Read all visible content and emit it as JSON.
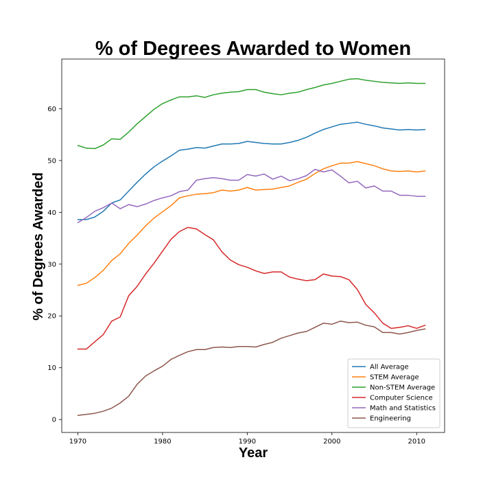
{
  "chart_data": {
    "type": "line",
    "title": "% of Degrees Awarded to Women",
    "xlabel": "Year",
    "ylabel": "% of Degrees Awarded",
    "xlim": [
      1968.1,
      2013.3
    ],
    "ylim": [
      -2.5,
      69.6
    ],
    "xticks": [
      1970,
      1980,
      1990,
      2000,
      2010
    ],
    "yticks": [
      0,
      10,
      20,
      30,
      40,
      50,
      60
    ],
    "grid": false,
    "legend_position": "lower-right",
    "x": [
      1970,
      1971,
      1972,
      1973,
      1974,
      1975,
      1976,
      1977,
      1978,
      1979,
      1980,
      1981,
      1982,
      1983,
      1984,
      1985,
      1986,
      1987,
      1988,
      1989,
      1990,
      1991,
      1992,
      1993,
      1994,
      1995,
      1996,
      1997,
      1998,
      1999,
      2000,
      2001,
      2002,
      2003,
      2004,
      2005,
      2006,
      2007,
      2008,
      2009,
      2010,
      2011
    ],
    "series": [
      {
        "name": "All Average",
        "color": "#1f77b4",
        "values": [
          38.6,
          38.6,
          39.1,
          40.2,
          41.8,
          42.4,
          44.1,
          45.8,
          47.4,
          48.8,
          49.9,
          50.9,
          52.0,
          52.2,
          52.5,
          52.4,
          52.8,
          53.2,
          53.2,
          53.3,
          53.7,
          53.5,
          53.3,
          53.2,
          53.2,
          53.5,
          53.9,
          54.5,
          55.3,
          56.0,
          56.5,
          57.0,
          57.2,
          57.4,
          57.0,
          56.7,
          56.3,
          56.1,
          55.9,
          56.0,
          55.9,
          56.0
        ]
      },
      {
        "name": "STEM Average",
        "color": "#ff7f0e",
        "values": [
          25.9,
          26.3,
          27.4,
          28.8,
          30.7,
          32.0,
          34.0,
          35.6,
          37.4,
          38.9,
          40.1,
          41.3,
          42.8,
          43.2,
          43.5,
          43.6,
          43.8,
          44.3,
          44.1,
          44.3,
          44.8,
          44.3,
          44.4,
          44.5,
          44.8,
          45.1,
          45.8,
          46.4,
          47.5,
          48.4,
          49.0,
          49.5,
          49.5,
          49.8,
          49.4,
          49.0,
          48.4,
          48.0,
          47.9,
          48.0,
          47.8,
          48.0
        ]
      },
      {
        "name": "Non-STEM Average",
        "color": "#2ca02c",
        "values": [
          52.9,
          52.4,
          52.3,
          53.0,
          54.2,
          54.1,
          55.5,
          57.1,
          58.5,
          59.9,
          61.0,
          61.7,
          62.3,
          62.3,
          62.5,
          62.2,
          62.7,
          63.0,
          63.2,
          63.3,
          63.7,
          63.7,
          63.2,
          62.9,
          62.7,
          63.0,
          63.2,
          63.7,
          64.1,
          64.6,
          64.9,
          65.3,
          65.7,
          65.8,
          65.5,
          65.3,
          65.1,
          65.0,
          64.9,
          65.0,
          64.9,
          64.9
        ]
      },
      {
        "name": "Computer Science",
        "color": "#d62728",
        "values": [
          13.6,
          13.6,
          15.0,
          16.4,
          19.0,
          19.8,
          23.9,
          25.7,
          28.1,
          30.2,
          32.5,
          34.8,
          36.3,
          37.1,
          36.8,
          35.7,
          34.7,
          32.4,
          30.8,
          29.9,
          29.4,
          28.7,
          28.2,
          28.5,
          28.5,
          27.5,
          27.1,
          26.8,
          27.0,
          28.1,
          27.7,
          27.6,
          27.0,
          25.1,
          22.2,
          20.6,
          18.6,
          17.6,
          17.8,
          18.1,
          17.6,
          18.2
        ]
      },
      {
        "name": "Math and Statistics",
        "color": "#9467bd",
        "values": [
          38.0,
          39.0,
          40.2,
          40.9,
          41.8,
          40.7,
          41.5,
          41.1,
          41.6,
          42.3,
          42.8,
          43.2,
          44.0,
          44.3,
          46.2,
          46.5,
          46.7,
          46.5,
          46.2,
          46.2,
          47.3,
          47.0,
          47.4,
          46.4,
          47.0,
          46.1,
          46.5,
          47.1,
          48.3,
          47.8,
          48.2,
          47.0,
          45.7,
          46.0,
          44.7,
          45.1,
          44.1,
          44.1,
          43.3,
          43.3,
          43.1,
          43.1
        ]
      },
      {
        "name": "Engineering",
        "color": "#8c564b",
        "values": [
          0.8,
          1.0,
          1.2,
          1.6,
          2.2,
          3.2,
          4.5,
          6.8,
          8.4,
          9.4,
          10.3,
          11.6,
          12.4,
          13.1,
          13.5,
          13.5,
          13.9,
          14.0,
          13.9,
          14.1,
          14.1,
          14.0,
          14.5,
          14.9,
          15.7,
          16.2,
          16.7,
          17.0,
          17.8,
          18.6,
          18.4,
          19.0,
          18.7,
          18.8,
          18.2,
          17.9,
          16.8,
          16.8,
          16.5,
          16.8,
          17.2,
          17.5
        ]
      }
    ]
  }
}
